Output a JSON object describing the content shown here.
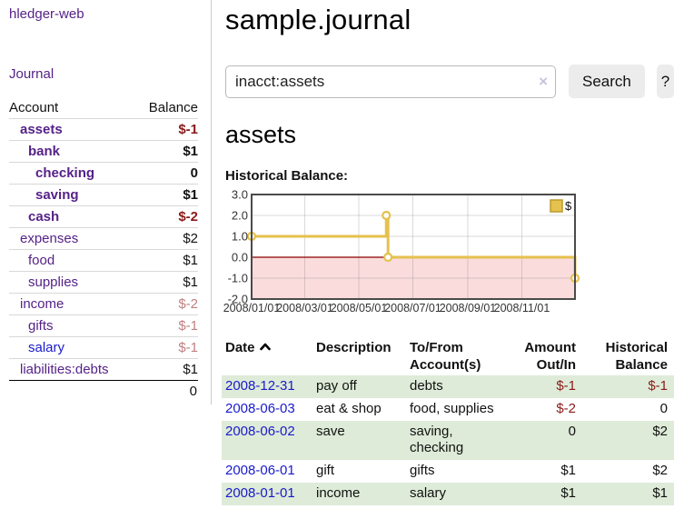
{
  "colors": {
    "link_purple": "#552288",
    "link_blue": "#1a1acd",
    "negative_strong": "#8b1a1a",
    "negative_light": "#c07f7f",
    "row_stripe": "#deebd8",
    "chart_gold": "#e5c14d",
    "chart_gold_border": "#bb9a2e",
    "chart_negative_fill": "#fbdcdc",
    "chart_zero_line": "#8b0000"
  },
  "icons": {
    "clear_search": "×",
    "sort_ascending": "chevron-up"
  },
  "sidebar": {
    "app_title": "hledger-web",
    "journal_link": "Journal",
    "accounts_header": {
      "account": "Account",
      "balance": "Balance"
    },
    "accounts": [
      {
        "label": "assets",
        "depth": 1,
        "selected": true,
        "balance": "$-1",
        "balance_style": "neg-strong"
      },
      {
        "label": "bank",
        "depth": 2,
        "selected": true,
        "balance": "$1",
        "balance_style": "normal"
      },
      {
        "label": "checking",
        "depth": 3,
        "selected": true,
        "balance": "0",
        "balance_style": "normal"
      },
      {
        "label": "saving",
        "depth": 3,
        "selected": true,
        "balance": "$1",
        "balance_style": "normal"
      },
      {
        "label": "cash",
        "depth": 2,
        "selected": true,
        "balance": "$-2",
        "balance_style": "neg-strong"
      },
      {
        "label": "expenses",
        "depth": 1,
        "selected": false,
        "balance": "$2",
        "balance_style": "normal"
      },
      {
        "label": "food",
        "depth": 2,
        "selected": false,
        "balance": "$1",
        "balance_style": "normal"
      },
      {
        "label": "supplies",
        "depth": 2,
        "selected": false,
        "balance": "$1",
        "balance_style": "normal"
      },
      {
        "label": "income",
        "depth": 1,
        "selected": false,
        "balance": "$-2",
        "balance_style": "neg-light"
      },
      {
        "label": "gifts",
        "depth": 2,
        "selected": false,
        "balance": "$-1",
        "balance_style": "neg-light"
      },
      {
        "label": "salary",
        "depth": 2,
        "selected": false,
        "balance": "$-1",
        "balance_style": "neg-light",
        "link_color": "blue"
      },
      {
        "label": "liabilities:debts",
        "depth": 1,
        "selected": false,
        "balance": "$1",
        "balance_style": "normal"
      }
    ],
    "total_balance": "0"
  },
  "header": {
    "title": "sample.journal"
  },
  "search": {
    "value": "inacct:assets",
    "button_label": "Search",
    "help_label": "?"
  },
  "account_page": {
    "heading": "assets",
    "chart_label": "Historical Balance:"
  },
  "chart_data": {
    "type": "line",
    "step": true,
    "title": "Historical Balance",
    "x_start": "2008-01-01",
    "x_end": "2008-12-31",
    "ylim": [
      -2,
      3
    ],
    "y_ticks": [
      "3.0",
      "2.0",
      "1.0",
      "0.0",
      "-1.0",
      "-2.0"
    ],
    "y_tick_values": [
      3,
      2,
      1,
      0,
      -1,
      -2
    ],
    "x_ticks": [
      {
        "label": "2008/01/01",
        "date": "2008-01-01"
      },
      {
        "label": "2008/03/01",
        "date": "2008-03-01"
      },
      {
        "label": "2008/05/01",
        "date": "2008-05-01"
      },
      {
        "label": "2008/07/01",
        "date": "2008-07-01"
      },
      {
        "label": "2008/09/01",
        "date": "2008-09-01"
      },
      {
        "label": "2008/11/01",
        "date": "2008-11-01"
      }
    ],
    "legend": {
      "label": "$",
      "position": "top-right"
    },
    "grid": true,
    "series": [
      {
        "name": "$",
        "points": [
          [
            "2008-01-01",
            1
          ],
          [
            "2008-06-01",
            2
          ],
          [
            "2008-06-03",
            0
          ],
          [
            "2008-12-31",
            -1
          ]
        ]
      }
    ]
  },
  "register": {
    "columns": [
      "Date",
      "Description",
      "To/From Account(s)",
      "Amount Out/In",
      "Historical Balance"
    ],
    "rows": [
      {
        "date": "2008-12-31",
        "description": "pay off",
        "accounts": "debts",
        "amount": "$-1",
        "amount_negative": true,
        "balance": "$-1",
        "balance_negative": true
      },
      {
        "date": "2008-06-03",
        "description": "eat & shop",
        "accounts": "food, supplies",
        "amount": "$-2",
        "amount_negative": true,
        "balance": "0",
        "balance_negative": false
      },
      {
        "date": "2008-06-02",
        "description": "save",
        "accounts": "saving, checking",
        "amount": "0",
        "amount_negative": false,
        "balance": "$2",
        "balance_negative": false
      },
      {
        "date": "2008-06-01",
        "description": "gift",
        "accounts": "gifts",
        "amount": "$1",
        "amount_negative": false,
        "balance": "$2",
        "balance_negative": false
      },
      {
        "date": "2008-01-01",
        "description": "income",
        "accounts": "salary",
        "amount": "$1",
        "amount_negative": false,
        "balance": "$1",
        "balance_negative": false
      }
    ]
  }
}
